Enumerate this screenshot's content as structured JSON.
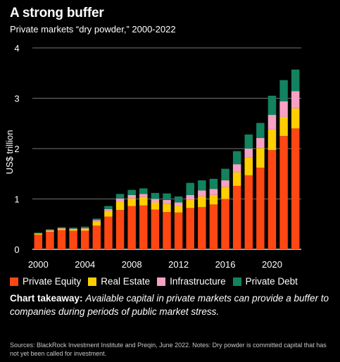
{
  "header": {
    "title": "A strong buffer",
    "subtitle": "Private markets “dry powder,” 2000-2022"
  },
  "chart_data": {
    "type": "bar",
    "stacked": true,
    "x": [
      2000,
      2001,
      2002,
      2003,
      2004,
      2005,
      2006,
      2007,
      2008,
      2009,
      2010,
      2011,
      2012,
      2013,
      2014,
      2015,
      2016,
      2017,
      2018,
      2019,
      2020,
      2021,
      2022
    ],
    "x_tick_labels": [
      "2000",
      "2004",
      "2008",
      "2012",
      "2016",
      "2020"
    ],
    "ylabel": "US$ trillion",
    "ylim": [
      0,
      4
    ],
    "y_ticks": [
      "0",
      "1",
      "2",
      "3",
      "4"
    ],
    "grid": true,
    "series": [
      {
        "name": "Private Equity",
        "color": "#ff4713",
        "values": [
          0.29,
          0.35,
          0.38,
          0.37,
          0.37,
          0.47,
          0.65,
          0.78,
          0.86,
          0.87,
          0.79,
          0.74,
          0.73,
          0.82,
          0.84,
          0.89,
          1.0,
          1.26,
          1.47,
          1.62,
          1.97,
          2.25,
          2.4
        ]
      },
      {
        "name": "Real Estate",
        "color": "#ffce00",
        "values": [
          0.02,
          0.02,
          0.03,
          0.03,
          0.04,
          0.08,
          0.11,
          0.17,
          0.15,
          0.17,
          0.14,
          0.16,
          0.13,
          0.16,
          0.21,
          0.19,
          0.24,
          0.27,
          0.35,
          0.39,
          0.41,
          0.38,
          0.4
        ]
      },
      {
        "name": "Infrastructure",
        "color": "#f7a1c4",
        "values": [
          0.01,
          0.01,
          0.01,
          0.01,
          0.01,
          0.03,
          0.04,
          0.06,
          0.07,
          0.06,
          0.07,
          0.08,
          0.07,
          0.1,
          0.12,
          0.12,
          0.13,
          0.16,
          0.18,
          0.2,
          0.29,
          0.31,
          0.34
        ]
      },
      {
        "name": "Private Debt",
        "color": "#12825f",
        "values": [
          0.01,
          0.02,
          0.02,
          0.02,
          0.03,
          0.03,
          0.06,
          0.09,
          0.1,
          0.11,
          0.12,
          0.13,
          0.12,
          0.24,
          0.2,
          0.2,
          0.23,
          0.26,
          0.28,
          0.3,
          0.38,
          0.42,
          0.43
        ]
      }
    ]
  },
  "takeaway": {
    "lead": "Chart takeaway:",
    "text": "Available capital in private markets can provide a buffer to companies during periods of public market stress."
  },
  "sources": "Sources: BlackRock Investment Institute and Preqin, June 2022. Notes: Dry powder is committed capital that has not yet been called for investment."
}
